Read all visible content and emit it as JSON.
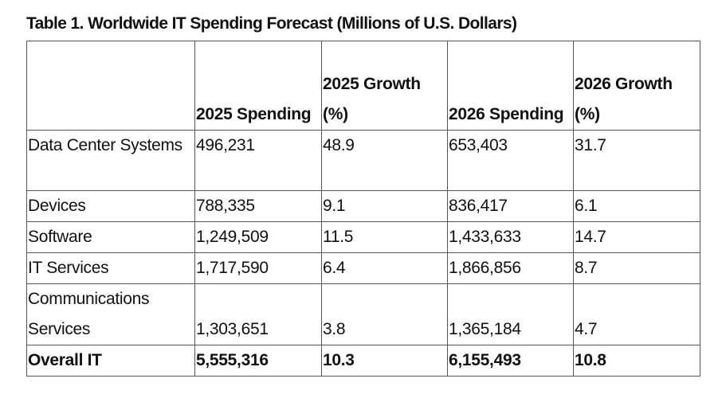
{
  "title": "Table 1. Worldwide IT Spending Forecast (Millions of U.S. Dollars)",
  "columns": [
    "",
    "2025 Spending",
    "2025 Growth (%)",
    "2026 Spending",
    "2026 Growth (%)"
  ],
  "rows": [
    {
      "label": "Data Center Systems",
      "values": [
        "496,231",
        "48.9",
        "653,403",
        "31.7"
      ]
    },
    {
      "label": "Devices",
      "values": [
        "788,335",
        "9.1",
        "836,417",
        "6.1"
      ]
    },
    {
      "label": "Software",
      "values": [
        "1,249,509",
        "11.5",
        "1,433,633",
        "14.7"
      ]
    },
    {
      "label": "IT Services",
      "values": [
        "1,717,590",
        "6.4",
        "1,866,856",
        "8.7"
      ]
    },
    {
      "label": "Communications Services",
      "values": [
        "1,303,651",
        "3.8",
        "1,365,184",
        "4.7"
      ]
    },
    {
      "label": "Overall IT",
      "values": [
        "5,555,316",
        "10.3",
        "6,155,493",
        "10.8"
      ]
    }
  ]
}
